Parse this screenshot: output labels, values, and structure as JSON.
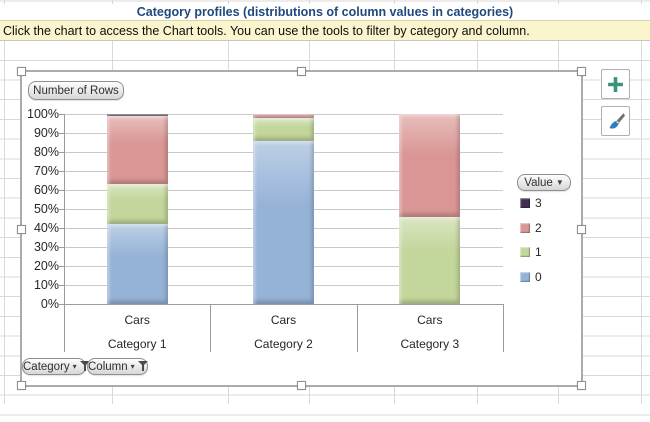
{
  "sheet": {
    "title": "Category profiles (distributions of column values in categories)",
    "banner": "Click the chart to access the Chart tools. You can use the tools to filter by category and column."
  },
  "pivot_buttons": {
    "rows_field": "Number of Rows",
    "legend_field": "Value",
    "axis_fields": [
      "Category",
      "Column"
    ]
  },
  "side_buttons": {
    "add_icon": "plus-icon",
    "style_icon": "paintbrush-icon",
    "plus_color": "#3A947C",
    "brush_color": "#2F7CC0"
  },
  "chart_data": {
    "type": "bar",
    "subtype": "100%-stacked-column",
    "title": "",
    "categories": [
      {
        "line1": "Cars",
        "line2": "Category 1"
      },
      {
        "line1": "Cars",
        "line2": "Category 2"
      },
      {
        "line1": "Cars",
        "line2": "Category 3"
      }
    ],
    "series": [
      {
        "name": "0",
        "color": "#95B3D7",
        "values": [
          42,
          86,
          0
        ]
      },
      {
        "name": "1",
        "color": "#C3D69B",
        "values": [
          21,
          12,
          46
        ]
      },
      {
        "name": "2",
        "color": "#D99694",
        "values": [
          36,
          2,
          54
        ]
      },
      {
        "name": "3",
        "color": "#403152",
        "values": [
          1,
          0,
          0
        ]
      }
    ],
    "values_unit": "percent-of-column-total",
    "ylim": [
      0,
      100
    ],
    "yticks": [
      "0%",
      "10%",
      "20%",
      "30%",
      "40%",
      "50%",
      "60%",
      "70%",
      "80%",
      "90%",
      "100%"
    ],
    "grid": true,
    "legend_title": "Value",
    "legend_order": [
      "3",
      "2",
      "1",
      "0"
    ],
    "legend_position": "right"
  }
}
